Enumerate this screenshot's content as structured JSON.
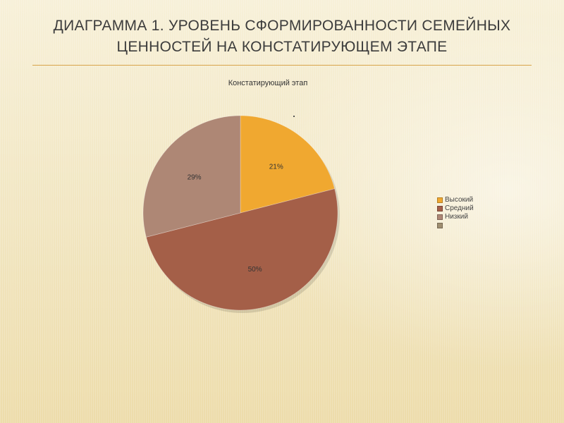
{
  "slide": {
    "title_line1": "Диаграмма 1. Уровень сформированности семейных",
    "title_line2": "ценностей на констатирующем этапе"
  },
  "chart_data": {
    "type": "pie",
    "title": "Констатирующий этап",
    "categories": [
      "Высокий",
      "Средний",
      "Низкий",
      ""
    ],
    "values": [
      21,
      50,
      29,
      0
    ],
    "value_labels": [
      "21%",
      "50%",
      "29%",
      ""
    ],
    "colors": [
      "#f0a830",
      "#a45f48",
      "#ae8775",
      "#9f8e70"
    ],
    "legend_position": "right"
  }
}
